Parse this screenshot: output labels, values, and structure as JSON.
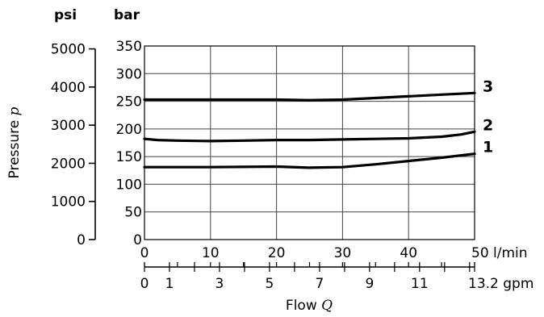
{
  "chart_data": {
    "type": "line",
    "axes": {
      "psi_unit": "psi",
      "bar_unit": "bar",
      "ylabel_text": "Pressure",
      "ylabel_symbol": "p",
      "xlabel_text": "Flow",
      "xlabel_symbol": "Q",
      "psi_ticks": [
        0,
        1000,
        2000,
        3000,
        4000,
        5000
      ],
      "bar_ticks": [
        0,
        50,
        100,
        150,
        200,
        250,
        300,
        350
      ],
      "lmin_ticks": [
        0,
        10,
        20,
        30,
        40,
        50
      ],
      "lmin_last_label": "50 l/min",
      "gpm_labels": [
        "0",
        "1",
        "3",
        "5",
        "7",
        "9",
        "11",
        "13.2 gpm"
      ],
      "ylim_bar": [
        0,
        350
      ],
      "xlim_lmin": [
        0,
        50
      ],
      "grid": true
    },
    "series": [
      {
        "name": "1",
        "x": [
          0,
          10,
          20,
          25,
          30,
          35,
          40,
          45,
          50
        ],
        "y": [
          131,
          131,
          132,
          130,
          131,
          136,
          142,
          148,
          155
        ]
      },
      {
        "name": "2",
        "x": [
          0,
          2,
          5,
          10,
          15,
          20,
          25,
          30,
          35,
          40,
          45,
          48,
          50
        ],
        "y": [
          182,
          180,
          179,
          178,
          179,
          180,
          180,
          181,
          182,
          183,
          186,
          190,
          195
        ]
      },
      {
        "name": "3",
        "x": [
          0,
          10,
          20,
          25,
          30,
          35,
          40,
          45,
          50
        ],
        "y": [
          253,
          253,
          253,
          252,
          253,
          256,
          259,
          262,
          265
        ]
      }
    ]
  }
}
